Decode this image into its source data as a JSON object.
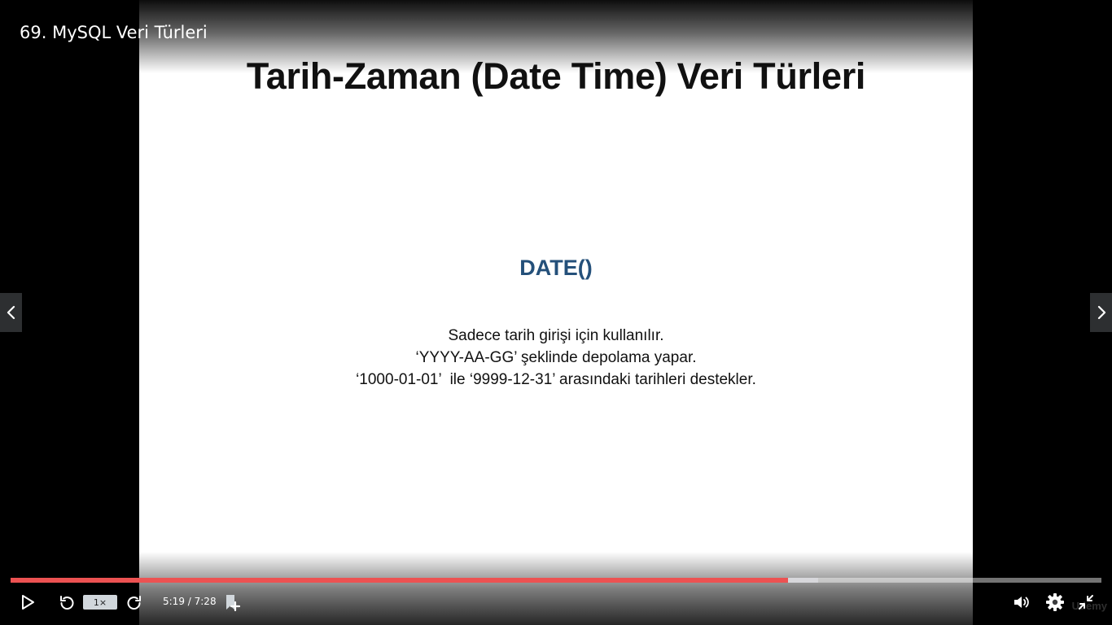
{
  "video": {
    "title": "69. MySQL Veri Türleri"
  },
  "slide": {
    "title": "Tarih-Zaman (Date Time) Veri Türleri",
    "heading": "DATE()",
    "lines": [
      "Sadece tarih girişi için kullanılır.",
      "‘YYYY-AA-GG’ şeklinde depolama yapar.",
      "‘1000-01-01’  ile ‘9999-12-31’ arasındaki tarihleri destekler."
    ],
    "heading_color": "#24507a"
  },
  "player": {
    "current_time": "5:19",
    "duration": "7:28",
    "time_separator": " / ",
    "speed_label": "1×",
    "progress_fraction": 0.713,
    "buffered_fraction": 0.74,
    "progress_color": "#ec5252",
    "watermark": "Udemy"
  },
  "icons": {
    "play": "play-icon",
    "rewind": "rewind-5-icon",
    "forward": "forward-5-icon",
    "bookmark": "add-note-icon",
    "volume": "volume-icon",
    "settings": "gear-icon",
    "exit_fullscreen": "exit-fullscreen-icon",
    "prev": "chevron-left-icon",
    "next": "chevron-right-icon"
  }
}
